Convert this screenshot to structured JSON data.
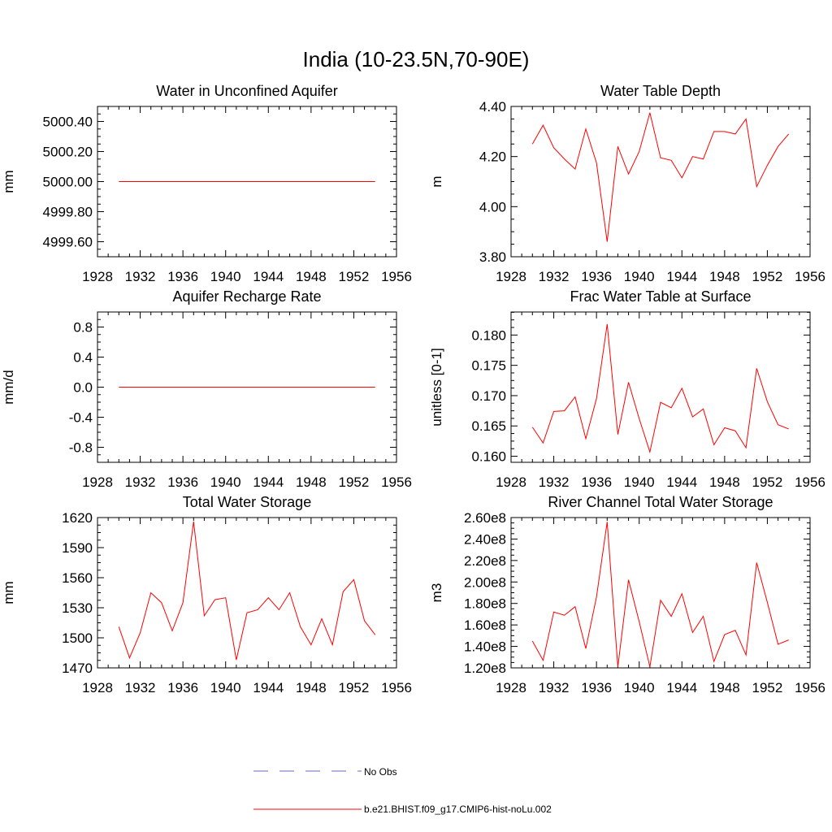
{
  "title": "India (10-23.5N,70-90E)",
  "colors": {
    "model": "#ff0000",
    "obs": "#6a6ac8"
  },
  "legend": {
    "placement": "bottom-center",
    "obs_label": "No Obs",
    "model_label": "b.e21.BHIST.f09_g17.CMIP6-hist-noLu.002"
  },
  "chart_data": [
    {
      "type": "line",
      "title": "Water in Unconfined Aquifer",
      "ylabel": "mm",
      "xlim": [
        1928,
        1956
      ],
      "ylim": [
        4999.5,
        5000.5
      ],
      "xticks": [
        1928,
        1932,
        1936,
        1940,
        1944,
        1948,
        1952,
        1956
      ],
      "yticks": [
        "4999.60",
        "4999.80",
        "5000.00",
        "5000.20",
        "5000.40"
      ],
      "x": [
        1930,
        1931,
        1932,
        1933,
        1934,
        1935,
        1936,
        1937,
        1938,
        1939,
        1940,
        1941,
        1942,
        1943,
        1944,
        1945,
        1946,
        1947,
        1948,
        1949,
        1950,
        1951,
        1952,
        1953,
        1954
      ],
      "series": [
        {
          "name": "b.e21.BHIST.f09_g17.CMIP6-hist-noLu.002",
          "values": [
            5000,
            5000,
            5000,
            5000,
            5000,
            5000,
            5000,
            5000,
            5000,
            5000,
            5000,
            5000,
            5000,
            5000,
            5000,
            5000,
            5000,
            5000,
            5000,
            5000,
            5000,
            5000,
            5000,
            5000,
            5000
          ]
        }
      ]
    },
    {
      "type": "line",
      "title": "Water Table Depth",
      "ylabel": "m",
      "xlim": [
        1928,
        1956
      ],
      "ylim": [
        3.8,
        4.4
      ],
      "xticks": [
        1928,
        1932,
        1936,
        1940,
        1944,
        1948,
        1952,
        1956
      ],
      "yticks": [
        "3.80",
        "4.00",
        "4.20",
        "4.40"
      ],
      "x": [
        1930,
        1931,
        1932,
        1933,
        1934,
        1935,
        1936,
        1937,
        1938,
        1939,
        1940,
        1941,
        1942,
        1943,
        1944,
        1945,
        1946,
        1947,
        1948,
        1949,
        1950,
        1951,
        1952,
        1953,
        1954
      ],
      "series": [
        {
          "name": "b.e21.BHIST.f09_g17.CMIP6-hist-noLu.002",
          "values": [
            4.25,
            4.325,
            4.235,
            4.19,
            4.15,
            4.31,
            4.175,
            3.86,
            4.24,
            4.13,
            4.22,
            4.375,
            4.195,
            4.185,
            4.115,
            4.2,
            4.19,
            4.3,
            4.3,
            4.29,
            4.35,
            4.08,
            4.165,
            4.24,
            4.29
          ]
        }
      ]
    },
    {
      "type": "line",
      "title": "Aquifer Recharge Rate",
      "ylabel": "mm/d",
      "xlim": [
        1928,
        1956
      ],
      "ylim": [
        -1.0,
        1.0
      ],
      "xticks": [
        1928,
        1932,
        1936,
        1940,
        1944,
        1948,
        1952,
        1956
      ],
      "yticks": [
        "-0.8",
        "-0.4",
        "0.0",
        "0.4",
        "0.8"
      ],
      "x": [
        1930,
        1931,
        1932,
        1933,
        1934,
        1935,
        1936,
        1937,
        1938,
        1939,
        1940,
        1941,
        1942,
        1943,
        1944,
        1945,
        1946,
        1947,
        1948,
        1949,
        1950,
        1951,
        1952,
        1953,
        1954
      ],
      "series": [
        {
          "name": "b.e21.BHIST.f09_g17.CMIP6-hist-noLu.002",
          "values": [
            0,
            0,
            0,
            0,
            0,
            0,
            0,
            0,
            0,
            0,
            0,
            0,
            0,
            0,
            0,
            0,
            0,
            0,
            0,
            0,
            0,
            0,
            0,
            0,
            0
          ]
        }
      ]
    },
    {
      "type": "line",
      "title": "Frac Water Table at Surface",
      "ylabel": "unitless [0-1]",
      "xlim": [
        1928,
        1956
      ],
      "ylim": [
        0.159,
        0.1838
      ],
      "xticks": [
        1928,
        1932,
        1936,
        1940,
        1944,
        1948,
        1952,
        1956
      ],
      "yticks": [
        "0.160",
        "0.165",
        "0.170",
        "0.175",
        "0.180"
      ],
      "x": [
        1930,
        1931,
        1932,
        1933,
        1934,
        1935,
        1936,
        1937,
        1938,
        1939,
        1940,
        1941,
        1942,
        1943,
        1944,
        1945,
        1946,
        1947,
        1948,
        1949,
        1950,
        1951,
        1952,
        1953,
        1954
      ],
      "series": [
        {
          "name": "b.e21.BHIST.f09_g17.CMIP6-hist-noLu.002",
          "values": [
            0.1648,
            0.1622,
            0.1674,
            0.1675,
            0.1698,
            0.1629,
            0.1695,
            0.1818,
            0.1636,
            0.1722,
            0.1662,
            0.1607,
            0.1689,
            0.168,
            0.1712,
            0.1665,
            0.1678,
            0.1619,
            0.1647,
            0.1642,
            0.1614,
            0.1745,
            0.169,
            0.1652,
            0.1645
          ]
        }
      ]
    },
    {
      "type": "line",
      "title": "Total Water Storage",
      "ylabel": "mm",
      "xlim": [
        1928,
        1956
      ],
      "ylim": [
        1470,
        1620
      ],
      "xticks": [
        1928,
        1932,
        1936,
        1940,
        1944,
        1948,
        1952,
        1956
      ],
      "yticks": [
        "1470",
        "1500",
        "1530",
        "1560",
        "1590",
        "1620"
      ],
      "x": [
        1930,
        1931,
        1932,
        1933,
        1934,
        1935,
        1936,
        1937,
        1938,
        1939,
        1940,
        1941,
        1942,
        1943,
        1944,
        1945,
        1946,
        1947,
        1948,
        1949,
        1950,
        1951,
        1952,
        1953,
        1954
      ],
      "series": [
        {
          "name": "b.e21.BHIST.f09_g17.CMIP6-hist-noLu.002",
          "values": [
            1511,
            1480,
            1505,
            1545,
            1535,
            1507,
            1535,
            1616,
            1522,
            1538,
            1540,
            1478,
            1525,
            1528,
            1540,
            1528,
            1545,
            1511,
            1493,
            1519,
            1493,
            1546,
            1558,
            1517,
            1503
          ]
        }
      ]
    },
    {
      "type": "line",
      "title": "River Channel Total Water Storage",
      "ylabel": "m3",
      "xlim": [
        1928,
        1956
      ],
      "ylim": [
        120000000,
        260000000
      ],
      "xticks": [
        1928,
        1932,
        1936,
        1940,
        1944,
        1948,
        1952,
        1956
      ],
      "yticks": [
        "1.20e8",
        "1.40e8",
        "1.60e8",
        "1.80e8",
        "2.00e8",
        "2.20e8",
        "2.40e8",
        "2.60e8"
      ],
      "x": [
        1930,
        1931,
        1932,
        1933,
        1934,
        1935,
        1936,
        1937,
        1938,
        1939,
        1940,
        1941,
        1942,
        1943,
        1944,
        1945,
        1946,
        1947,
        1948,
        1949,
        1950,
        1951,
        1952,
        1953,
        1954
      ],
      "series": [
        {
          "name": "b.e21.BHIST.f09_g17.CMIP6-hist-noLu.002",
          "values": [
            145000000,
            127000000,
            172000000,
            169000000,
            177000000,
            138000000,
            186000000,
            256000000,
            121000000,
            202000000,
            163000000,
            121000000,
            183000000,
            168000000,
            189000000,
            153000000,
            168000000,
            126000000,
            151000000,
            155000000,
            132000000,
            218000000,
            181000000,
            142000000,
            146000000
          ]
        }
      ]
    }
  ]
}
